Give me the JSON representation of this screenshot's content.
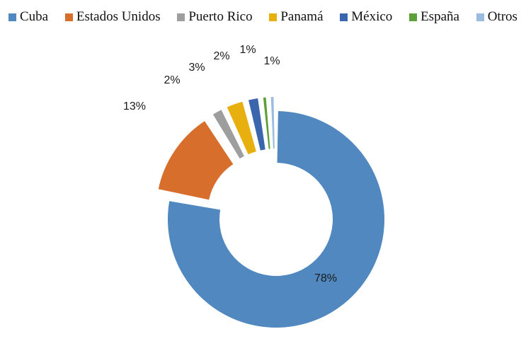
{
  "chart_data": {
    "type": "pie",
    "variant": "donut-exploded",
    "title": "",
    "legend_position": "top",
    "slices": [
      {
        "label": "Cuba",
        "value": 78,
        "value_label": "78%",
        "color": "#5088BF"
      },
      {
        "label": "Estados Unidos",
        "value": 13,
        "value_label": "13%",
        "color": "#D86E2C"
      },
      {
        "label": "Puerto Rico",
        "value": 2,
        "value_label": "2%",
        "color": "#9E9E9E"
      },
      {
        "label": "Panamá",
        "value": 3,
        "value_label": "3%",
        "color": "#E8B00E"
      },
      {
        "label": "México",
        "value": 2,
        "value_label": "2%",
        "color": "#3A66AE"
      },
      {
        "label": "España",
        "value": 1,
        "value_label": "1%",
        "color": "#5DA03A"
      },
      {
        "label": "Otros",
        "value": 1,
        "value_label": "1%",
        "color": "#9BBCE0"
      }
    ]
  }
}
